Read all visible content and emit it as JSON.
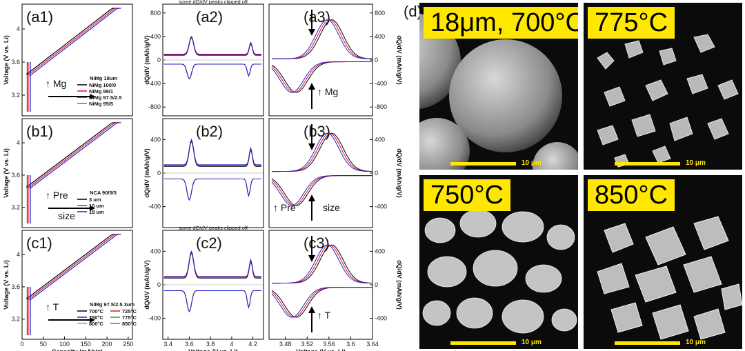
{
  "chart_data": [
    {
      "id": "a1",
      "type": "line",
      "panel_label": "(a1)",
      "xlabel": "",
      "ylabel": "Voltage (V vs. Li)",
      "xlim": [
        0,
        260
      ],
      "ylim": [
        2.95,
        4.3
      ],
      "yticks": [
        3.2,
        3.6,
        4
      ],
      "legend_title": "NiMg 18um",
      "series": [
        {
          "name": "NiMg 100/0",
          "color": "#000000"
        },
        {
          "name": "NiMg 99/1",
          "color": "#e0102f"
        },
        {
          "name": "NiMg 97.5/2.5",
          "color": "#2222cc"
        },
        {
          "name": "NiMg 95/5",
          "color": "#22aa22"
        }
      ],
      "annotation": "Mg"
    },
    {
      "id": "a2",
      "type": "line",
      "panel_label": "(a2)",
      "xlabel": "",
      "ylabel": "dQ/dV (mAh/g/V)",
      "xlim": [
        3.35,
        4.3
      ],
      "ylim": [
        -950,
        950
      ],
      "yticks": [
        -800,
        -400,
        0,
        400,
        800
      ],
      "top_note": "some dQ/dV peaks clipped off"
    },
    {
      "id": "a3",
      "type": "line",
      "panel_label": "(a3)",
      "xlabel": "",
      "ylabel": "dQ/dV (mAh/g/V)",
      "xlim": [
        3.45,
        3.64
      ],
      "ylim": [
        -950,
        950
      ],
      "yticks": [
        -800,
        -400,
        0,
        400,
        800
      ],
      "annotation": "Mg"
    },
    {
      "id": "b1",
      "type": "line",
      "panel_label": "(b1)",
      "ylabel": "Voltage (V vs. Li)",
      "xlim": [
        0,
        260
      ],
      "ylim": [
        2.95,
        4.3
      ],
      "yticks": [
        3.2,
        3.6,
        4
      ],
      "legend_title": "NCA 90/5/5",
      "series": [
        {
          "name": "3 um",
          "color": "#000000"
        },
        {
          "name": "10 um",
          "color": "#e0102f"
        },
        {
          "name": "18 um",
          "color": "#2222cc"
        }
      ],
      "annotation": "Pre",
      "annotation2": "size"
    },
    {
      "id": "b2",
      "type": "line",
      "panel_label": "(b2)",
      "ylabel": "dQ/dV (mAh/g/V)",
      "xlim": [
        3.35,
        4.3
      ],
      "ylim": [
        -650,
        650
      ],
      "yticks": [
        -400,
        0,
        400
      ]
    },
    {
      "id": "b3",
      "type": "line",
      "panel_label": "(b3)",
      "ylabel": "dQ/dV (mAh/g/V)",
      "xlim": [
        3.45,
        3.64
      ],
      "ylim": [
        -650,
        650
      ],
      "yticks": [
        -400,
        0,
        400
      ],
      "annotation": "Pre",
      "annotation2": "size"
    },
    {
      "id": "c1",
      "type": "line",
      "panel_label": "(c1)",
      "xlabel": "Capacity (mAh/g)",
      "ylabel": "Voltage (V vs. Li)",
      "xlim": [
        0,
        260
      ],
      "ylim": [
        2.95,
        4.3
      ],
      "yticks": [
        3.2,
        3.6,
        4
      ],
      "xticks": [
        0,
        50,
        100,
        150,
        200,
        250
      ],
      "legend_title": "NiMg 97.5/2.5 3um",
      "series": [
        {
          "name": "700°C",
          "color": "#000000"
        },
        {
          "name": "725°C",
          "color": "#e0102f"
        },
        {
          "name": "750°C",
          "color": "#2222cc"
        },
        {
          "name": "775°C",
          "color": "#22aa22"
        },
        {
          "name": "800°C",
          "color": "#8db600"
        },
        {
          "name": "850°C",
          "color": "#1a9c8c"
        }
      ],
      "annotation": "T"
    },
    {
      "id": "c2",
      "type": "line",
      "panel_label": "(c2)",
      "xlabel": "Voltage (V vs. Li)",
      "ylabel": "dQ/dV (mAh/g/V)",
      "xlim": [
        3.35,
        4.3
      ],
      "ylim": [
        -650,
        650
      ],
      "yticks": [
        -400,
        0,
        400
      ],
      "xticks": [
        3.4,
        3.6,
        3.8,
        4,
        4.2
      ],
      "top_note": "some dQ/dV peaks clipped off"
    },
    {
      "id": "c3",
      "type": "line",
      "panel_label": "(c3)",
      "xlabel": "Voltage (V vs. Li)",
      "ylabel": "dQ/dV (mAh/g/V)",
      "xlim": [
        3.45,
        3.64
      ],
      "ylim": [
        -650,
        650
      ],
      "yticks": [
        -400,
        0,
        400
      ],
      "xticks": [
        3.48,
        3.52,
        3.56,
        3.6,
        3.64
      ],
      "annotation": "T"
    }
  ],
  "sem_panel_label": "(d)",
  "sem_images": [
    {
      "label": "18μm, 700°C",
      "scale": "10 μm"
    },
    {
      "label": "775°C",
      "scale": "10 μm"
    },
    {
      "label": "750°C",
      "scale": "10 μm"
    },
    {
      "label": "850°C",
      "scale": "10 μm"
    }
  ],
  "colors": {
    "sem_label_bg": "#ffe800",
    "sem_bg": "#0b0b0b"
  }
}
